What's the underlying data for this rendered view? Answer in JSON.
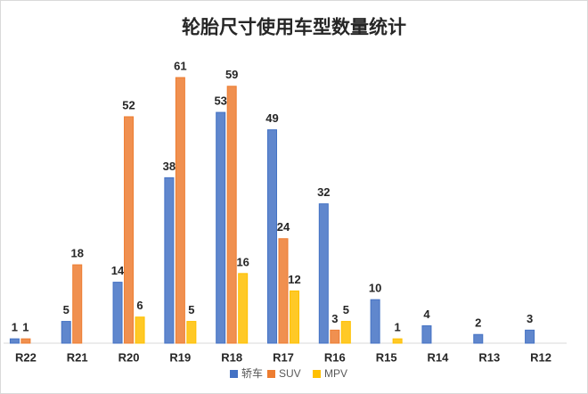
{
  "chart_data": {
    "type": "bar",
    "title": "轮胎尺寸使用车型数量统计",
    "categories": [
      "R22",
      "R21",
      "R20",
      "R19",
      "R18",
      "R17",
      "R16",
      "R15",
      "R14",
      "R13",
      "R12"
    ],
    "series": [
      {
        "name": "轿车",
        "color": "#4472c4",
        "values": [
          1,
          5,
          14,
          38,
          53,
          49,
          32,
          10,
          4,
          2,
          3
        ]
      },
      {
        "name": "SUV",
        "color": "#ed7d31",
        "values": [
          1,
          18,
          52,
          61,
          59,
          24,
          3,
          null,
          null,
          null,
          null
        ]
      },
      {
        "name": "MPV",
        "color": "#ffc000",
        "values": [
          null,
          null,
          6,
          5,
          16,
          12,
          5,
          1,
          null,
          null,
          null
        ]
      }
    ],
    "legend": "bottom"
  }
}
